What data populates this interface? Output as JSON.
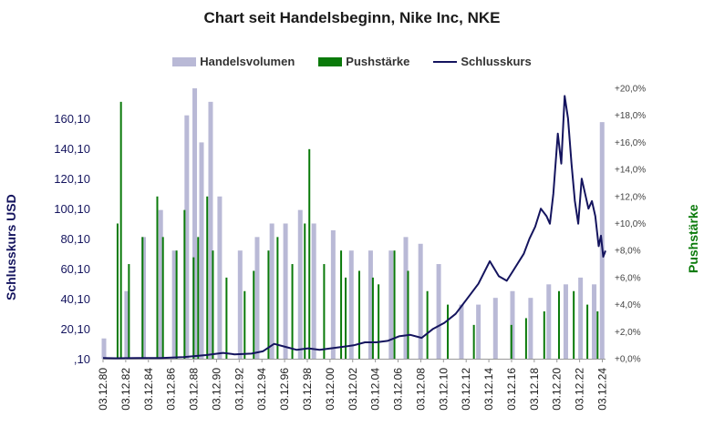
{
  "chart_data": {
    "type": "combo",
    "title": "Chart seit Handelsbeginn, Nike Inc, NKE",
    "legend": [
      {
        "key": "volume",
        "label": "Handelsvolumen",
        "color": "#b9b9d6"
      },
      {
        "key": "push",
        "label": "Pushstärke",
        "color": "#0a7a0a"
      },
      {
        "key": "close",
        "label": "Schlusskurs",
        "color": "#14145e"
      }
    ],
    "legend_position": "top-center",
    "ylabel_left": "Schlusskurs USD",
    "ylabel_right": "Pushstärke",
    "left_axis_color": "#14145e",
    "right_axis_color": "#0a7a0a",
    "y_left_ticks": [
      ",10",
      "20,10",
      "40,10",
      "60,10",
      "80,10",
      "100,10",
      "120,10",
      "140,10",
      "160,10"
    ],
    "y_left_range": [
      0.1,
      180.1
    ],
    "y_right_ticks": [
      "+0,0%",
      "+2,0%",
      "+4,0%",
      "+6,0%",
      "+8,0%",
      "+10,0%",
      "+12,0%",
      "+14,0%",
      "+16,0%",
      "+18,0%",
      "+20,0%"
    ],
    "y_right_range": [
      0,
      20
    ],
    "x_ticks": [
      "03.12.80",
      "03.12.82",
      "03.12.84",
      "03.12.86",
      "03.12.88",
      "03.12.90",
      "03.12.92",
      "03.12.94",
      "03.12.96",
      "03.12.98",
      "03.12.00",
      "03.12.02",
      "03.12.04",
      "03.12.06",
      "03.12.08",
      "03.12.10",
      "03.12.12",
      "03.12.14",
      "03.12.16",
      "03.12.18",
      "03.12.20",
      "03.12.22",
      "03.12.24"
    ],
    "x_range_years": [
      1980.92,
      2025.2
    ],
    "series": [
      {
        "name": "Schlusskurs",
        "type": "line",
        "x": [
          1980.92,
          1982,
          1984,
          1986,
          1988,
          1990,
          1991.5,
          1992.5,
          1994,
          1995,
          1996,
          1997,
          1998,
          1999,
          2000,
          2001,
          2002,
          2003,
          2004,
          2005,
          2006,
          2007,
          2008,
          2009,
          2010,
          2011,
          2012,
          2013,
          2014,
          2015,
          2015.8,
          2016.5,
          2017,
          2018,
          2018.5,
          2019,
          2019.5,
          2020,
          2020.3,
          2020.6,
          2021,
          2021.3,
          2021.6,
          2021.9,
          2022.2,
          2022.5,
          2022.8,
          2023.1,
          2023.4,
          2023.7,
          2024,
          2024.3,
          2024.6,
          2024.8,
          2025,
          2025.2
        ],
        "values": [
          0.5,
          0.4,
          0.5,
          0.6,
          1.2,
          2.5,
          4.0,
          3.0,
          3.5,
          5.0,
          10.0,
          8.0,
          6.0,
          7.0,
          6.0,
          7.0,
          8.0,
          9.0,
          11.0,
          11.0,
          12.0,
          15.0,
          16.0,
          14.0,
          20.0,
          24.0,
          30.0,
          40.0,
          50.0,
          65.0,
          55.0,
          52.0,
          58.0,
          70.0,
          80.0,
          88.0,
          100.0,
          95.0,
          90.0,
          110.0,
          150.0,
          130.0,
          175.0,
          160.0,
          130.0,
          105.0,
          90.0,
          120.0,
          110.0,
          100.0,
          105.0,
          95.0,
          75.0,
          82.0,
          68.0,
          72.0
        ]
      },
      {
        "name": "Handelsvolumen",
        "type": "bar",
        "x": [
          1981,
          1983,
          1984.5,
          1986,
          1987.2,
          1988.3,
          1989,
          1989.6,
          1990.4,
          1991.2,
          1993,
          1994.5,
          1995.8,
          1997,
          1998.3,
          1999.5,
          2001.2,
          2002.8,
          2004.5,
          2006.3,
          2007.6,
          2008.9,
          2010.5,
          2012.5,
          2014,
          2015.5,
          2017,
          2018.6,
          2020.2,
          2021.7,
          2023,
          2024.2,
          2024.9
        ],
        "values_percent": [
          1.5,
          5.0,
          9.0,
          11.0,
          8.0,
          18.0,
          20.0,
          16.0,
          19.0,
          12.0,
          8.0,
          9.0,
          10.0,
          10.0,
          11.0,
          10.0,
          9.5,
          8.0,
          8.0,
          8.0,
          9.0,
          8.5,
          7.0,
          4.0,
          4.0,
          4.5,
          5.0,
          4.5,
          5.5,
          5.5,
          6.0,
          5.5,
          17.5
        ]
      },
      {
        "name": "Pushstärke",
        "type": "bar",
        "x": [
          1982.2,
          1982.5,
          1983.2,
          1984.4,
          1985.7,
          1986.2,
          1987.4,
          1988.1,
          1988.9,
          1989.3,
          1990.1,
          1990.6,
          1991.8,
          1993.4,
          1994.2,
          1995.5,
          1996.3,
          1997.6,
          1998.7,
          1999.1,
          2000.4,
          2001.9,
          2002.3,
          2003.5,
          2004.7,
          2005.2,
          2006.6,
          2007.8,
          2009.5,
          2011.3,
          2013.6,
          2016.9,
          2018.2,
          2019.8,
          2021.1,
          2022.4,
          2023.6,
          2024.5
        ],
        "values_percent": [
          10.0,
          19.0,
          7.0,
          9.0,
          12.0,
          9.0,
          8.0,
          11.0,
          7.5,
          9.0,
          12.0,
          8.0,
          6.0,
          5.0,
          6.5,
          8.0,
          9.0,
          7.0,
          10.0,
          15.5,
          7.0,
          8.0,
          6.0,
          6.5,
          6.0,
          5.5,
          8.0,
          6.5,
          5.0,
          4.0,
          2.5,
          2.5,
          3.0,
          3.5,
          5.0,
          5.0,
          4.0,
          3.5
        ]
      }
    ]
  }
}
